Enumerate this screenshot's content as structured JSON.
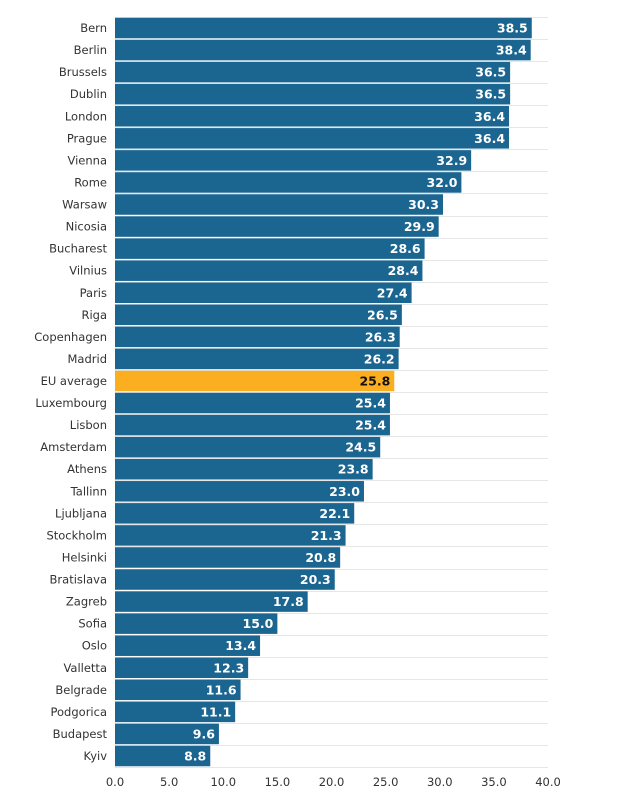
{
  "chart_data": {
    "type": "bar",
    "orientation": "horizontal",
    "title": "",
    "xlabel": "",
    "ylabel": "",
    "xlim": [
      0,
      40
    ],
    "x_ticks": [
      "0.0",
      "5.0",
      "10.0",
      "15.0",
      "20.0",
      "25.0",
      "30.0",
      "35.0",
      "40.0"
    ],
    "x_tick_values": [
      0,
      5,
      10,
      15,
      20,
      25,
      30,
      35,
      40
    ],
    "grid": true,
    "legend": null,
    "colors": {
      "default": "#1b6591",
      "highlight": "#fbae1f",
      "value_label_default": "#ffffff",
      "value_label_highlight": "#111111"
    },
    "categories": [
      "Bern",
      "Berlin",
      "Brussels",
      "Dublin",
      "London",
      "Prague",
      "Vienna",
      "Rome",
      "Warsaw",
      "Nicosia",
      "Bucharest",
      "Vilnius",
      "Paris",
      "Riga",
      "Copenhagen",
      "Madrid",
      "EU average",
      "Luxembourg",
      "Lisbon",
      "Amsterdam",
      "Athens",
      "Tallinn",
      "Ljubljana",
      "Stockholm",
      "Helsinki",
      "Bratislava",
      "Zagreb",
      "Sofia",
      "Oslo",
      "Valletta",
      "Belgrade",
      "Podgorica",
      "Budapest",
      "Kyiv"
    ],
    "values": [
      38.5,
      38.4,
      36.5,
      36.5,
      36.4,
      36.4,
      32.9,
      32.0,
      30.3,
      29.9,
      28.6,
      28.4,
      27.4,
      26.5,
      26.3,
      26.2,
      25.8,
      25.4,
      25.4,
      24.5,
      23.8,
      23.0,
      22.1,
      21.3,
      20.8,
      20.3,
      17.8,
      15.0,
      13.4,
      12.3,
      11.6,
      11.1,
      9.6,
      8.8
    ],
    "value_labels": [
      "38.5",
      "38.4",
      "36.5",
      "36.5",
      "36.4",
      "36.4",
      "32.9",
      "32.0",
      "30.3",
      "29.9",
      "28.6",
      "28.4",
      "27.4",
      "26.5",
      "26.3",
      "26.2",
      "25.8",
      "25.4",
      "25.4",
      "24.5",
      "23.8",
      "23.0",
      "22.1",
      "21.3",
      "20.8",
      "20.3",
      "17.8",
      "15.0",
      "13.4",
      "12.3",
      "11.6",
      "11.1",
      "9.6",
      "8.8"
    ],
    "highlighted": [
      "EU average"
    ]
  }
}
